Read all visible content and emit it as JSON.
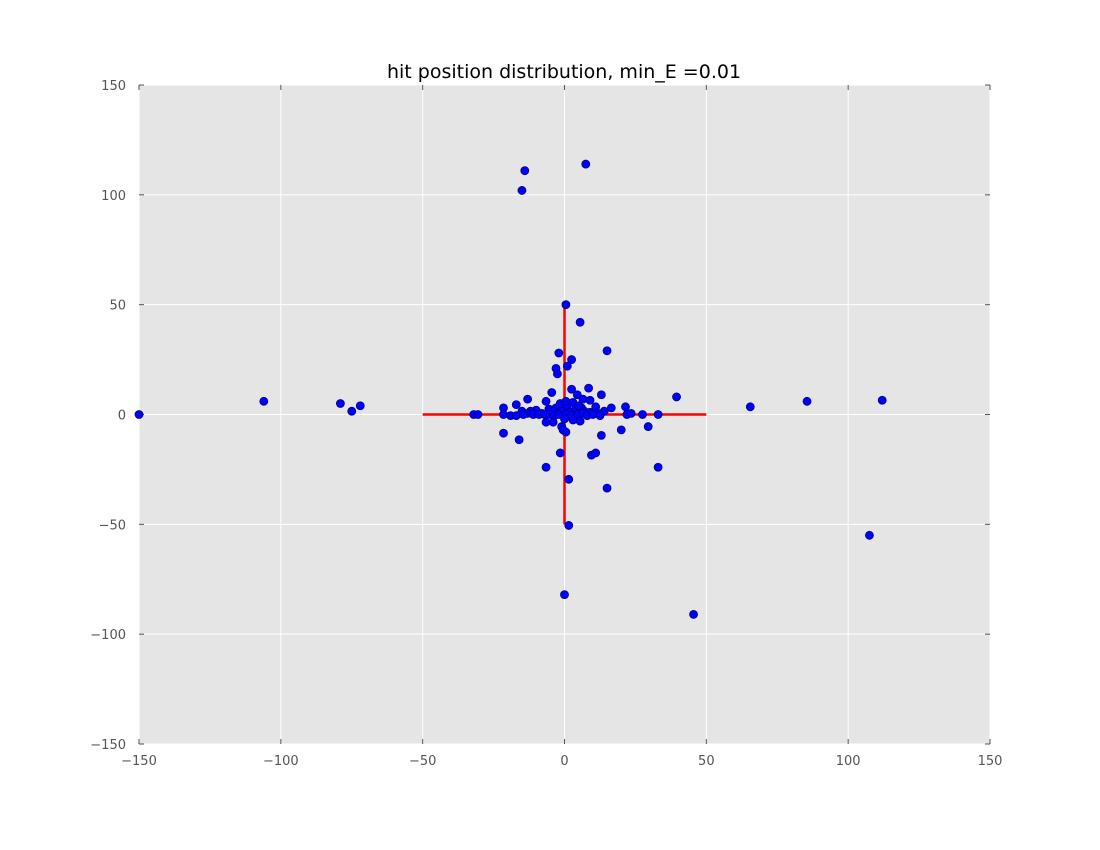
{
  "chart_data": {
    "type": "scatter",
    "title": "hit position distribution, min_E =0.01",
    "xlabel": "",
    "ylabel": "",
    "xlim": [
      -150,
      150
    ],
    "ylim": [
      -150,
      150
    ],
    "xticks": [
      -150,
      -100,
      -50,
      0,
      50,
      100,
      150
    ],
    "yticks": [
      -150,
      -100,
      -50,
      0,
      50,
      100,
      150
    ],
    "xtick_labels": [
      "−150",
      "−100",
      "−50",
      "0",
      "50",
      "100",
      "150"
    ],
    "ytick_labels": [
      "−150",
      "−100",
      "−50",
      "0",
      "50",
      "100",
      "150"
    ],
    "grid": true,
    "background_color": "#e5e5e5",
    "grid_color": "#ffffff",
    "marker_color": "#0000ff",
    "marker_edge_color": "#000080",
    "crosshair_color": "#ff0000",
    "crosshair_lines": [
      {
        "x": [
          -50,
          50
        ],
        "y": [
          0,
          0
        ]
      },
      {
        "x": [
          0,
          0
        ],
        "y": [
          -50,
          50
        ]
      }
    ],
    "points": [
      [
        -150,
        0
      ],
      [
        -106,
        6
      ],
      [
        -79,
        5
      ],
      [
        -75,
        1.5
      ],
      [
        -72,
        4
      ],
      [
        -14,
        111
      ],
      [
        -15,
        102
      ],
      [
        7.5,
        114
      ],
      [
        0.5,
        50
      ],
      [
        5.5,
        42
      ],
      [
        -2,
        28
      ],
      [
        15,
        29
      ],
      [
        2.5,
        25
      ],
      [
        1,
        22
      ],
      [
        -3,
        21
      ],
      [
        -2.5,
        18.5
      ],
      [
        8.5,
        12
      ],
      [
        2.5,
        11.5
      ],
      [
        -4.5,
        10
      ],
      [
        13,
        9
      ],
      [
        4.5,
        9
      ],
      [
        39.5,
        8
      ],
      [
        -13,
        7
      ],
      [
        6.5,
        7
      ],
      [
        112,
        6.5
      ],
      [
        85.5,
        6
      ],
      [
        9,
        6.5
      ],
      [
        -6.5,
        6
      ],
      [
        -17,
        4.5
      ],
      [
        -21.5,
        3
      ],
      [
        65.5,
        3.5
      ],
      [
        21.5,
        3.5
      ],
      [
        16.5,
        3
      ],
      [
        -3,
        3
      ],
      [
        -5.5,
        2.5
      ],
      [
        11,
        3.5
      ],
      [
        6,
        3
      ],
      [
        1,
        4
      ],
      [
        -10,
        2
      ],
      [
        -12,
        1.5
      ],
      [
        -15,
        1.5
      ],
      [
        -13,
        0.5
      ],
      [
        -8,
        0.5
      ],
      [
        -4,
        1.5
      ],
      [
        -1,
        1.5
      ],
      [
        2,
        1
      ],
      [
        4,
        2.5
      ],
      [
        7,
        1.5
      ],
      [
        9,
        1
      ],
      [
        12,
        0.5
      ],
      [
        14,
        1.5
      ],
      [
        -1.5,
        5
      ],
      [
        0.5,
        6
      ],
      [
        3,
        5.5
      ],
      [
        5,
        4
      ],
      [
        -32,
        0
      ],
      [
        -30.5,
        0
      ],
      [
        -21.5,
        0
      ],
      [
        -19,
        -0.5
      ],
      [
        -17,
        -0.5
      ],
      [
        -14.5,
        0
      ],
      [
        -11,
        0
      ],
      [
        -9,
        0
      ],
      [
        -7,
        0
      ],
      [
        -5,
        0
      ],
      [
        -3.5,
        -0.5
      ],
      [
        -2,
        0
      ],
      [
        0.5,
        0
      ],
      [
        2.5,
        -0.5
      ],
      [
        4.5,
        0
      ],
      [
        6.5,
        0.5
      ],
      [
        8,
        -0.5
      ],
      [
        10,
        0
      ],
      [
        12.5,
        -0.5
      ],
      [
        22,
        0
      ],
      [
        23.5,
        0.5
      ],
      [
        27.5,
        0
      ],
      [
        33,
        0
      ],
      [
        -6.5,
        -3.5
      ],
      [
        -4,
        -3.5
      ],
      [
        0,
        -2
      ],
      [
        3,
        -2.5
      ],
      [
        5.5,
        -3
      ],
      [
        29.5,
        -5.5
      ],
      [
        -1,
        -5.5
      ],
      [
        0.5,
        -8
      ],
      [
        -0.5,
        -7
      ],
      [
        20,
        -7
      ],
      [
        13,
        -9.5
      ],
      [
        -21.5,
        -8.5
      ],
      [
        -16,
        -11.5
      ],
      [
        -1.5,
        -17.5
      ],
      [
        9.5,
        -18.5
      ],
      [
        11,
        -17.5
      ],
      [
        -6.5,
        -24
      ],
      [
        33,
        -24
      ],
      [
        1.5,
        -29.5
      ],
      [
        15,
        -33.5
      ],
      [
        1.5,
        -50.5
      ],
      [
        107.5,
        -55
      ],
      [
        0,
        -82
      ],
      [
        45.5,
        -91
      ]
    ]
  }
}
